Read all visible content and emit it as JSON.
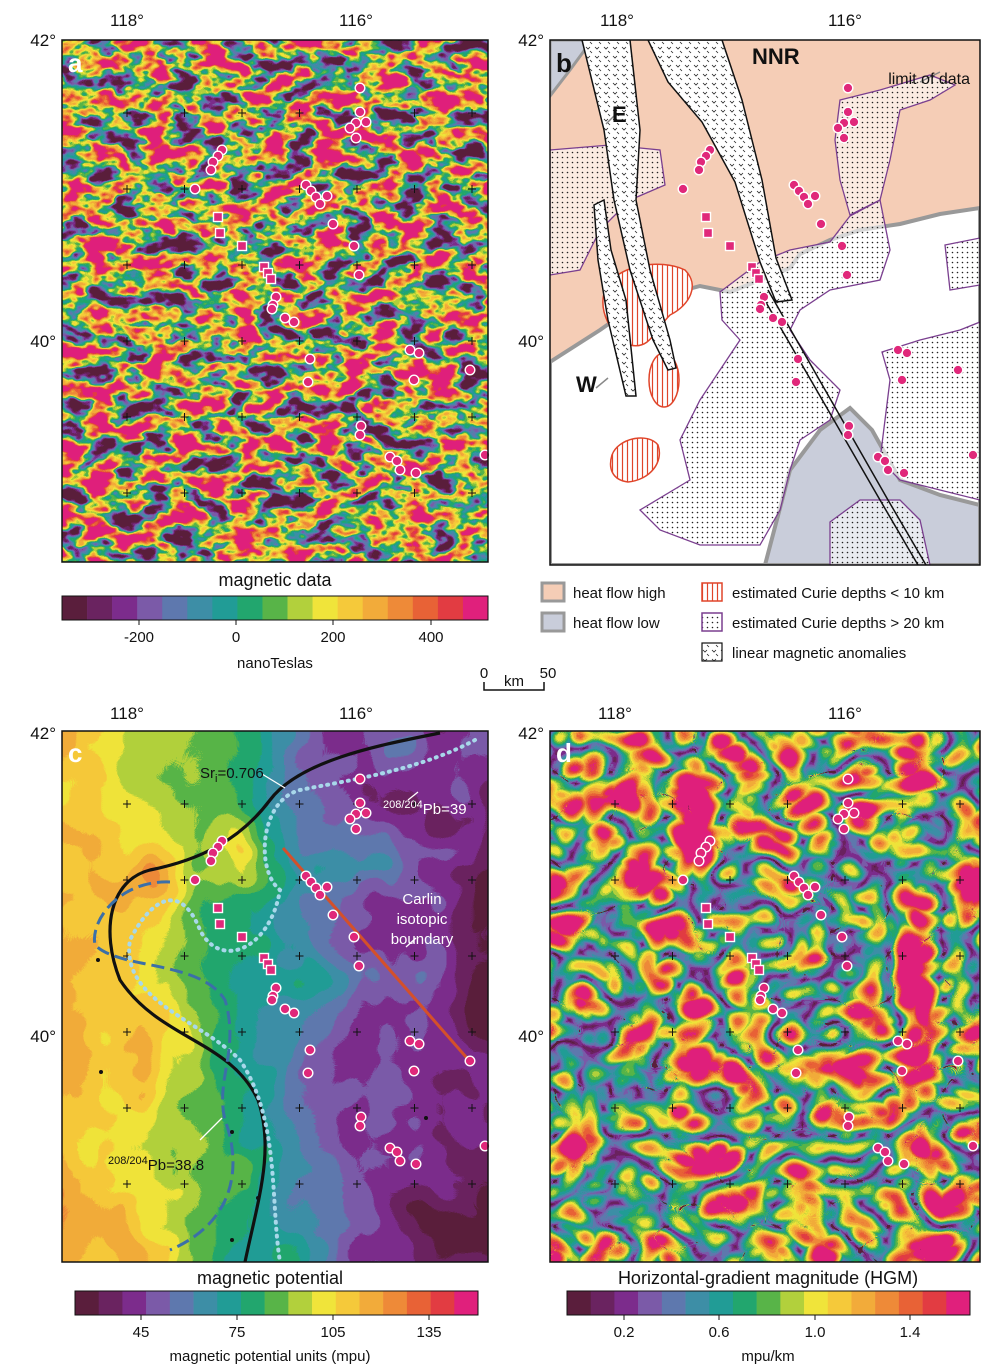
{
  "panels": [
    {
      "letter": "a",
      "x_labels": [
        "118°",
        "116°"
      ],
      "y_labels": [
        "42°",
        "40°"
      ],
      "title": "magnetic data",
      "colorbar": {
        "ticks": [
          "-200",
          "0",
          "200",
          "400"
        ],
        "unit": "nanoTeslas"
      }
    },
    {
      "letter": "b",
      "x_labels": [
        "118°",
        "116°"
      ],
      "y_labels": [
        "42°",
        "40°"
      ],
      "annotations": {
        "e": "E",
        "nnr": "NNR",
        "w": "W",
        "limit": "limit of data"
      },
      "legend": [
        "heat flow high",
        "heat flow low",
        "estimated Curie depths < 10 km",
        "estimated Curie depths > 20 km",
        "linear magnetic anomalies"
      ]
    },
    {
      "letter": "c",
      "x_labels": [
        "118°",
        "116°"
      ],
      "y_labels": [
        "42°",
        "40°"
      ],
      "title": "magnetic potential",
      "colorbar": {
        "ticks": [
          "45",
          "75",
          "105",
          "135"
        ],
        "unit": "magnetic potential units (mpu)"
      },
      "annotations": {
        "sr": {
          "base": "Sr",
          "sub": "i",
          "rest": "=0.706"
        },
        "pb39": {
          "sup": "208/204",
          "rest": "Pb=39"
        },
        "carlin": [
          "Carlin",
          "isotopic",
          "boundary"
        ],
        "pb388": {
          "sup": "208/204",
          "rest": "Pb=38.8"
        }
      }
    },
    {
      "letter": "d",
      "x_labels": [
        "118°",
        "116°"
      ],
      "y_labels": [
        "42°",
        "40°"
      ],
      "title": "Horizontal-gradient magnitude (HGM)",
      "colorbar": {
        "ticks": [
          "0.2",
          "0.6",
          "1.0",
          "1.4"
        ],
        "unit": "mpu/km"
      }
    }
  ],
  "scale_bar": {
    "start": "0",
    "unit": "km",
    "end": "50"
  }
}
